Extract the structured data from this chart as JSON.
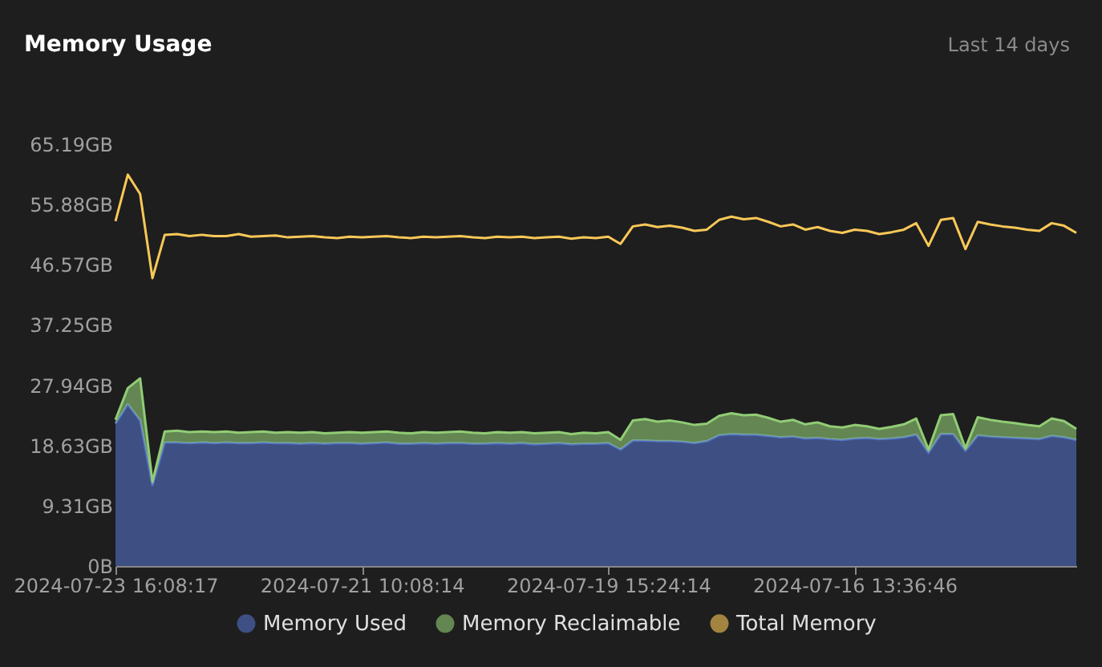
{
  "chart_data": {
    "type": "area",
    "title": "Memory Usage",
    "annotations": [
      "Last 14 days"
    ],
    "stacked": true,
    "legend": "bottom",
    "categories": [
      "2024-07-23 16:08:17",
      null,
      null,
      null,
      null,
      null,
      null,
      null,
      null,
      null,
      null,
      null,
      null,
      null,
      null,
      null,
      null,
      null,
      null,
      null,
      "2024-07-21 10:08:14",
      null,
      null,
      null,
      null,
      null,
      null,
      null,
      null,
      null,
      null,
      null,
      null,
      null,
      null,
      null,
      null,
      null,
      null,
      null,
      "2024-07-19 15:24:14",
      null,
      null,
      null,
      null,
      null,
      null,
      null,
      null,
      null,
      null,
      null,
      null,
      null,
      null,
      null,
      null,
      null,
      null,
      null,
      "2024-07-16 13:36:46",
      null,
      null,
      null,
      null,
      null,
      null,
      null,
      null,
      null,
      null,
      null,
      null,
      null,
      null,
      null,
      null,
      null,
      null
    ],
    "ylim": [
      0,
      65.19
    ],
    "yticks": [
      {
        "value": 0,
        "label": "0B"
      },
      {
        "value": 9.31,
        "label": "9.31GB"
      },
      {
        "value": 18.63,
        "label": "18.63GB"
      },
      {
        "value": 27.94,
        "label": "27.94GB"
      },
      {
        "value": 37.25,
        "label": "37.25GB"
      },
      {
        "value": 46.57,
        "label": "46.57GB"
      },
      {
        "value": 55.88,
        "label": "55.88GB"
      },
      {
        "value": 65.19,
        "label": "65.19GB"
      }
    ],
    "series": [
      {
        "name": "Memory Used",
        "color": "#5470c6",
        "values": [
          22.0,
          25.0,
          22.5,
          12.5,
          19.1,
          19.1,
          19.0,
          19.1,
          19.0,
          19.1,
          19.0,
          19.0,
          19.1,
          19.0,
          19.0,
          18.9,
          19.0,
          18.9,
          19.0,
          19.0,
          18.9,
          19.0,
          19.1,
          18.9,
          18.9,
          19.0,
          18.9,
          19.0,
          19.0,
          18.9,
          18.9,
          19.0,
          18.9,
          19.0,
          18.8,
          18.9,
          19.0,
          18.8,
          18.9,
          18.9,
          19.0,
          18.0,
          19.4,
          19.4,
          19.3,
          19.3,
          19.2,
          19.0,
          19.3,
          20.2,
          20.4,
          20.3,
          20.3,
          20.1,
          19.9,
          20.0,
          19.7,
          19.8,
          19.6,
          19.5,
          19.7,
          19.8,
          19.6,
          19.7,
          19.9,
          20.3,
          17.5,
          20.4,
          20.4,
          17.8,
          20.2,
          20.0,
          19.9,
          19.8,
          19.7,
          19.6,
          20.1,
          19.9,
          19.5
        ]
      },
      {
        "name": "Memory Reclaimable",
        "color": "#91cc75",
        "values": [
          0.6,
          2.5,
          6.5,
          0.5,
          1.7,
          1.8,
          1.7,
          1.7,
          1.7,
          1.7,
          1.6,
          1.7,
          1.7,
          1.6,
          1.7,
          1.7,
          1.7,
          1.6,
          1.6,
          1.7,
          1.7,
          1.7,
          1.7,
          1.7,
          1.6,
          1.7,
          1.7,
          1.7,
          1.8,
          1.7,
          1.6,
          1.7,
          1.7,
          1.7,
          1.7,
          1.7,
          1.7,
          1.6,
          1.7,
          1.6,
          1.7,
          1.5,
          3.1,
          3.3,
          3.0,
          3.2,
          3.0,
          2.8,
          2.7,
          3.0,
          3.2,
          3.0,
          3.1,
          2.8,
          2.4,
          2.6,
          2.2,
          2.4,
          2.0,
          1.9,
          2.1,
          1.8,
          1.6,
          1.8,
          2.0,
          2.5,
          0.5,
          2.9,
          3.1,
          0.4,
          2.8,
          2.6,
          2.4,
          2.3,
          2.1,
          2.0,
          2.7,
          2.5,
          1.7
        ]
      },
      {
        "name": "Total Memory",
        "type": "line",
        "color": "#fac858",
        "values": [
          53.3,
          60.5,
          57.5,
          44.5,
          51.2,
          51.3,
          51.0,
          51.2,
          51.0,
          51.0,
          51.3,
          50.9,
          51.0,
          51.1,
          50.8,
          50.9,
          51.0,
          50.8,
          50.7,
          50.9,
          50.8,
          50.9,
          51.0,
          50.8,
          50.7,
          50.9,
          50.8,
          50.9,
          51.0,
          50.8,
          50.7,
          50.9,
          50.8,
          50.9,
          50.7,
          50.8,
          50.9,
          50.6,
          50.8,
          50.7,
          50.9,
          49.8,
          52.5,
          52.8,
          52.4,
          52.6,
          52.3,
          51.8,
          52.0,
          53.5,
          54.0,
          53.6,
          53.8,
          53.2,
          52.5,
          52.8,
          52.0,
          52.4,
          51.8,
          51.5,
          52.0,
          51.8,
          51.3,
          51.6,
          52.0,
          53.0,
          49.5,
          53.5,
          53.8,
          49.0,
          53.2,
          52.8,
          52.5,
          52.3,
          52.0,
          51.8,
          53.0,
          52.6,
          51.5
        ]
      }
    ]
  }
}
